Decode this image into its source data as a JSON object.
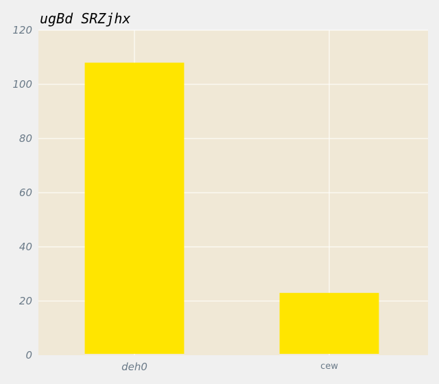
{
  "chart_data": {
    "type": "bar",
    "title": "ugBd SRZjhx",
    "categories": [
      "deh0",
      "cew"
    ],
    "values": [
      108,
      23
    ],
    "ylim": [
      0,
      120
    ],
    "yticks": [
      0,
      20,
      40,
      60,
      80,
      100,
      120
    ],
    "grid": true,
    "colors": {
      "bar": "#ffe500",
      "plot_background": "#f0e8d6",
      "page_background": "#f0f0f0",
      "grid": "#ffffff",
      "tick_label": "#6a7a88"
    }
  }
}
